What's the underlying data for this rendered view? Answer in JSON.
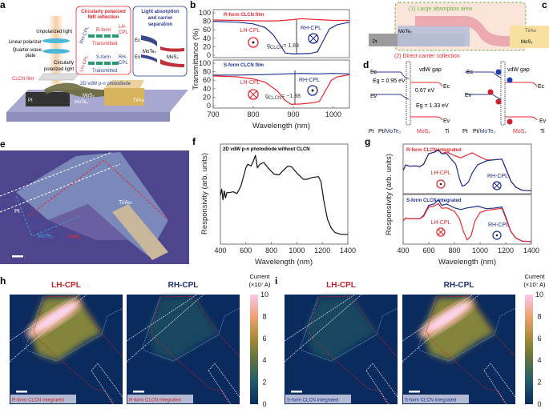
{
  "colors": {
    "red": "#e8262d",
    "blue": "#1f2f8f",
    "map_bg": "#0b2a5e",
    "photo_bg": "#4d468e"
  },
  "panel_labels": [
    "a",
    "b",
    "c",
    "d",
    "e",
    "f",
    "g",
    "h",
    "i"
  ],
  "panel_a": {
    "unpolarized": "Unpolarized light",
    "linear_polarizer": "Linear polarizer",
    "quarter_wave": [
      "Quarter-wave",
      "plate"
    ],
    "circularly": [
      "Circularly",
      "polarized light"
    ],
    "clcn_film": "CLCN film",
    "photodiode": "2D vdW p-n photodiode",
    "pt": "Pt",
    "mos2": "MoS₂",
    "mote2": "MoTe₂",
    "tiau": "Ti/Au",
    "reflection_box": {
      "title": [
        "Circularly polarized",
        "NIR reflection"
      ],
      "r_form": "R-form",
      "s_form": "S-form",
      "lh_cpl": [
        "LH-",
        "CPL"
      ],
      "rh_cpl": [
        "RH-",
        "CPL"
      ],
      "transmitted": "Transmitted",
      "reflected": "Reflected",
      "reflected_rh": "RH-CPL",
      "reflected_lh": "LH-CPL",
      "cpl": "CPL"
    },
    "absorption_box": {
      "title": [
        "Light absorption",
        "and carrier",
        "separation"
      ],
      "ec": "Ec",
      "ev": "Ev",
      "mote2": "MoTe₂",
      "mos2": "MoS₂"
    }
  },
  "panel_c": {
    "large_area": "(1) Large absorption area",
    "direct_collection": "(2) Direct carrier collection",
    "pt": "Pt",
    "mote2": "MoTe₂",
    "tiau": "Ti/Au",
    "mos2": "MoS₂"
  },
  "panel_d": {
    "left": {
      "ec": "Ec",
      "ev": "Ev",
      "eg1": "Eg = 0.95 eV",
      "offset": "0.67 eV",
      "eg2": "Eg = 1.33 eV",
      "vdw": "vdW gap",
      "ec_r": "Ec",
      "ev_r": "Ev"
    },
    "right": {
      "ec": "Ec",
      "ev": "Ev",
      "vdw": "vdW gap",
      "ec_r": "Ec",
      "ev_r": "Ev"
    },
    "bottom": [
      "Pt",
      "Pt/",
      "MoTe₂",
      "MoS₂",
      "Ti"
    ]
  },
  "panel_e": {
    "pt": "Pt",
    "mote2": "MoTe₂",
    "mos2": "MoS₂",
    "tiau": "Ti/Au"
  },
  "chart_data": [
    {
      "id": "b",
      "type": "line",
      "xlabel": "Wavelength (nm)",
      "ylabel": "Transmittance (%)",
      "xlim": [
        700,
        1040
      ],
      "xticks": [
        700,
        800,
        900,
        1000
      ],
      "ylim": [
        0,
        100
      ],
      "yticks": [
        0,
        20,
        40,
        60,
        80,
        100
      ],
      "subplots": [
        {
          "title": "R-form CLCN film",
          "annotation": {
            "g": "g",
            "sub": "CLCN",
            "value": "= 1.89"
          },
          "labels": {
            "lh": "LH-CPL",
            "rh": "RH-CPL"
          },
          "series": [
            {
              "name": "LH-CPL",
              "color": "#e8262d",
              "x": [
                700,
                760,
                820,
                860,
                900,
                920,
                960,
                1000,
                1040
              ],
              "y": [
                83,
                82,
                81,
                81,
                84,
                86,
                84,
                82,
                82
              ]
            },
            {
              "name": "RH-CPL",
              "color": "#1f2f8f",
              "x": [
                700,
                760,
                800,
                830,
                850,
                870,
                880,
                900,
                940,
                960,
                975,
                990,
                1010,
                1040
              ],
              "y": [
                80,
                78,
                74,
                65,
                48,
                20,
                5,
                3,
                4,
                8,
                35,
                62,
                72,
                78
              ]
            }
          ]
        },
        {
          "title": "S-form CLCN film",
          "annotation": {
            "g": "g",
            "sub": "CLCN",
            "value": "= −1.88"
          },
          "labels": {
            "lh": "LH-CPL",
            "rh": "RH-CPL"
          },
          "series": [
            {
              "name": "RH-CPL",
              "color": "#1f2f8f",
              "x": [
                700,
                760,
                820,
                880,
                920,
                960,
                1000,
                1040
              ],
              "y": [
                72,
                72,
                73,
                75,
                76,
                75,
                76,
                75
              ]
            },
            {
              "name": "LH-CPL",
              "color": "#e8262d",
              "x": [
                700,
                760,
                800,
                830,
                860,
                880,
                895,
                920,
                950,
                965,
                980,
                995,
                1010,
                1040
              ],
              "y": [
                70,
                68,
                63,
                55,
                35,
                12,
                3,
                4,
                7,
                10,
                35,
                60,
                68,
                73
              ]
            }
          ]
        }
      ]
    },
    {
      "id": "f",
      "type": "line",
      "title": "2D vdW p-n photodiode without CLCN",
      "xlabel": "Wavelength (nm)",
      "ylabel": "Responsivity (arb. units)",
      "xlim": [
        400,
        1400
      ],
      "xticks": [
        400,
        600,
        800,
        1000,
        1200,
        1400
      ],
      "ylim": [
        0,
        1.1
      ],
      "series": [
        {
          "color": "#111111",
          "x": [
            400,
            410,
            420,
            430,
            440,
            450,
            470,
            500,
            530,
            560,
            600,
            615,
            640,
            660,
            675,
            690,
            710,
            740,
            780,
            820,
            860,
            900,
            930,
            960,
            1000,
            1050,
            1080,
            1120,
            1170,
            1190,
            1210,
            1240,
            1270,
            1300,
            1350,
            1400
          ],
          "y": [
            0.55,
            0.62,
            0.5,
            0.6,
            0.52,
            0.58,
            0.58,
            0.59,
            0.57,
            0.65,
            0.86,
            0.9,
            0.88,
            0.94,
            1.0,
            0.86,
            0.9,
            0.92,
            0.85,
            0.79,
            0.78,
            0.84,
            0.88,
            0.87,
            0.8,
            0.73,
            0.73,
            0.75,
            0.76,
            0.7,
            0.5,
            0.28,
            0.18,
            0.13,
            0.11,
            0.11
          ]
        }
      ]
    },
    {
      "id": "g",
      "type": "line",
      "xlabel": "Wavelength (nm)",
      "ylabel": "Responsivity (arb. units)",
      "xlim": [
        400,
        1400
      ],
      "xticks": [
        400,
        600,
        800,
        1000,
        1200,
        1400
      ],
      "ylim": [
        0,
        1.1
      ],
      "subplots": [
        {
          "title": "R-form CLCN integrated",
          "labels": {
            "lh": "LH-CPL",
            "rh": "RH-CPL"
          },
          "series": [
            {
              "name": "LH-CPL",
              "color": "#e8262d",
              "x": [
                400,
                420,
                450,
                500,
                530,
                560,
                600,
                640,
                675,
                700,
                740,
                800,
                850,
                900,
                940,
                980,
                1050,
                1100,
                1170,
                1200,
                1240,
                1280,
                1330,
                1400
              ],
              "y": [
                0.55,
                0.68,
                0.65,
                0.66,
                0.64,
                0.7,
                0.95,
                0.98,
                1.05,
                0.95,
                0.99,
                0.9,
                0.85,
                0.92,
                0.97,
                0.9,
                0.8,
                0.8,
                0.82,
                0.6,
                0.3,
                0.15,
                0.08,
                0.07
              ]
            },
            {
              "name": "RH-CPL",
              "color": "#1f2f8f",
              "x": [
                400,
                420,
                450,
                500,
                530,
                560,
                600,
                640,
                675,
                700,
                740,
                780,
                810,
                840,
                860,
                880,
                910,
                940,
                980,
                1050,
                1100,
                1170,
                1200,
                1240,
                1280,
                1330,
                1400
              ],
              "y": [
                0.55,
                0.68,
                0.65,
                0.66,
                0.64,
                0.7,
                0.95,
                0.98,
                1.03,
                0.95,
                0.95,
                0.8,
                0.7,
                0.35,
                0.18,
                0.2,
                0.28,
                0.5,
                0.68,
                0.78,
                0.8,
                0.82,
                0.6,
                0.3,
                0.15,
                0.08,
                0.07
              ]
            }
          ]
        },
        {
          "title": "S-form CLCN integrated",
          "labels": {
            "lh": "LH-CPL",
            "rh": "RH-CPL"
          },
          "series": [
            {
              "name": "RH-CPL",
              "color": "#1f2f8f",
              "x": [
                400,
                420,
                450,
                500,
                530,
                560,
                600,
                640,
                675,
                700,
                740,
                800,
                850,
                900,
                950,
                980,
                1050,
                1100,
                1170,
                1200,
                1240,
                1280,
                1330,
                1400
              ],
              "y": [
                0.55,
                0.62,
                0.6,
                0.6,
                0.6,
                0.68,
                0.92,
                0.95,
                1.05,
                0.92,
                0.95,
                0.86,
                0.82,
                0.86,
                0.88,
                0.9,
                0.84,
                0.85,
                0.88,
                0.65,
                0.3,
                0.14,
                0.07,
                0.06
              ]
            },
            {
              "name": "LH-CPL",
              "color": "#e8262d",
              "x": [
                400,
                420,
                450,
                500,
                530,
                560,
                600,
                640,
                675,
                700,
                740,
                800,
                840,
                870,
                900,
                930,
                960,
                1000,
                1050,
                1100,
                1170,
                1200,
                1240,
                1280,
                1330,
                1400
              ],
              "y": [
                0.55,
                0.62,
                0.6,
                0.6,
                0.6,
                0.66,
                0.88,
                0.9,
                0.96,
                0.85,
                0.86,
                0.78,
                0.6,
                0.3,
                0.1,
                0.2,
                0.55,
                0.75,
                0.8,
                0.82,
                0.85,
                0.62,
                0.3,
                0.14,
                0.07,
                0.06
              ]
            }
          ]
        }
      ]
    },
    {
      "id": "h",
      "type": "heatmap",
      "maps": [
        {
          "title": "LH-CPL",
          "caption": "R-form CLCN integrated",
          "peak": 10
        },
        {
          "title": "RH-CPL",
          "caption": "R-form CLCN integrated",
          "peak": 1.5
        }
      ],
      "colorbar": {
        "label": [
          "Current",
          "(×10⁷ A)"
        ],
        "ticks": [
          0,
          2,
          4,
          6,
          8,
          10
        ],
        "range": [
          0,
          10
        ]
      }
    },
    {
      "id": "i",
      "type": "heatmap",
      "maps": [
        {
          "title": "LH-CPL",
          "caption": "S-form CLCN integrated",
          "peak": 1.5
        },
        {
          "title": "RH-CPL",
          "caption": "S-form CLCN integrated",
          "peak": 10
        }
      ],
      "colorbar": {
        "label": [
          "Current",
          "(×10⁷ A)"
        ],
        "ticks": [
          0,
          2,
          4,
          6,
          8,
          10
        ],
        "range": [
          0,
          10
        ]
      }
    }
  ]
}
